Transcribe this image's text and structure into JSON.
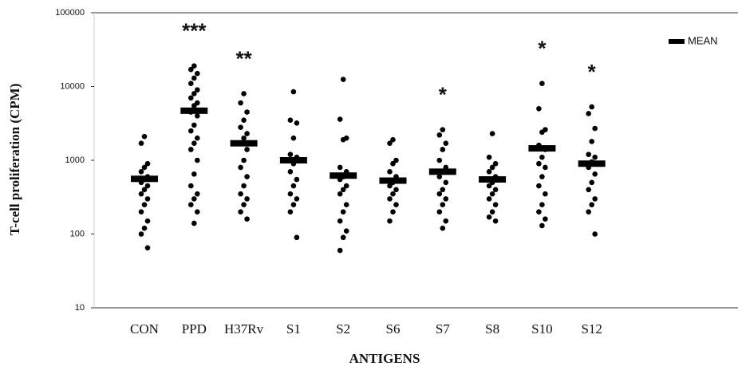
{
  "chart_data": {
    "type": "strip",
    "x_label": "ANTIGENS",
    "y_label": "T-cell proliferation (CPM)",
    "categories": [
      "CON",
      "PPD",
      "H37Rv",
      "S1",
      "S2",
      "S6",
      "S7",
      "S8",
      "S10",
      "S12"
    ],
    "points": [
      [
        2100,
        1700,
        900,
        800,
        700,
        600,
        550,
        500,
        450,
        400,
        350,
        300,
        250,
        200,
        150,
        120,
        100,
        65
      ],
      [
        19000,
        17000,
        15000,
        13000,
        11000,
        9000,
        8000,
        7000,
        6000,
        5500,
        4500,
        4000,
        3000,
        2500,
        2000,
        1700,
        1400,
        1000,
        650,
        450,
        350,
        300,
        250,
        200,
        140
      ],
      [
        8000,
        6000,
        4500,
        3500,
        2800,
        2300,
        2000,
        1700,
        1400,
        1000,
        800,
        600,
        450,
        350,
        300,
        250,
        200,
        160
      ],
      [
        8500,
        3500,
        3200,
        2000,
        1200,
        1100,
        900,
        700,
        550,
        450,
        350,
        300,
        250,
        200,
        90
      ],
      [
        12500,
        3600,
        2000,
        1900,
        800,
        700,
        600,
        550,
        450,
        400,
        350,
        250,
        200,
        150,
        110,
        90,
        60
      ],
      [
        1900,
        1700,
        1000,
        900,
        700,
        600,
        500,
        450,
        400,
        350,
        300,
        250,
        200,
        150
      ],
      [
        2600,
        2200,
        1700,
        1400,
        1000,
        800,
        700,
        600,
        500,
        400,
        350,
        300,
        250,
        200,
        150,
        120
      ],
      [
        2300,
        1100,
        900,
        800,
        700,
        600,
        500,
        450,
        400,
        350,
        300,
        250,
        200,
        170,
        150
      ],
      [
        11000,
        5000,
        2600,
        2400,
        1600,
        1400,
        1100,
        900,
        800,
        600,
        450,
        350,
        250,
        200,
        160,
        130
      ],
      [
        5300,
        4300,
        2700,
        1800,
        1200,
        1100,
        950,
        800,
        650,
        500,
        400,
        300,
        250,
        200,
        100
      ]
    ],
    "point_color": "#000000",
    "series": [
      {
        "name": "MEAN",
        "color": "#000000",
        "values": [
          560,
          4700,
          1700,
          1000,
          620,
          530,
          700,
          550,
          1450,
          900
        ]
      }
    ],
    "significance": [
      null,
      "***",
      "**",
      null,
      null,
      null,
      "*",
      null,
      "*",
      "*"
    ],
    "ylim": [
      10,
      100000
    ],
    "yticks": [
      10,
      100,
      1000,
      10000,
      100000
    ],
    "log_y": true,
    "grid": false,
    "legend": "top-right"
  }
}
